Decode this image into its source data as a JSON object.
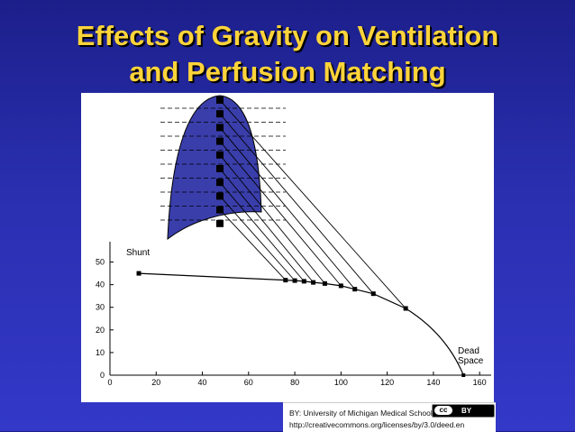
{
  "title": {
    "line1": "Effects of Gravity on Ventilation",
    "line2": "and Perfusion Matching"
  },
  "diagram": {
    "shunt_label": "Shunt",
    "dead_space_label_line1": "Dead",
    "dead_space_label_line2": "Space",
    "lung_color": "#3a3eaa",
    "title_color": "#ffd43a"
  },
  "chart_data": {
    "type": "line",
    "x_ticks": [
      "0",
      "20",
      "40",
      "60",
      "80",
      "100",
      "120",
      "140",
      "160"
    ],
    "y_ticks": [
      "0",
      "10",
      "20",
      "30",
      "40",
      "50"
    ],
    "xlim": [
      0,
      165
    ],
    "ylim": [
      0,
      55
    ],
    "points": [
      {
        "x": 12.5,
        "y": 45
      },
      {
        "x": 76,
        "y": 42
      },
      {
        "x": 80,
        "y": 41.8
      },
      {
        "x": 84,
        "y": 41.5
      },
      {
        "x": 88,
        "y": 41
      },
      {
        "x": 93,
        "y": 40.5
      },
      {
        "x": 100,
        "y": 39.5
      },
      {
        "x": 106,
        "y": 38
      },
      {
        "x": 114,
        "y": 36
      },
      {
        "x": 128,
        "y": 29.5
      }
    ],
    "curve_end": {
      "x": 153,
      "y": 0
    }
  },
  "credit": {
    "line1": "BY: University of Michigan Medical School",
    "line2": "http://creativecommons.org/licenses/by/3.0/deed.en",
    "cc_text": "cc",
    "by_text": "BY"
  }
}
